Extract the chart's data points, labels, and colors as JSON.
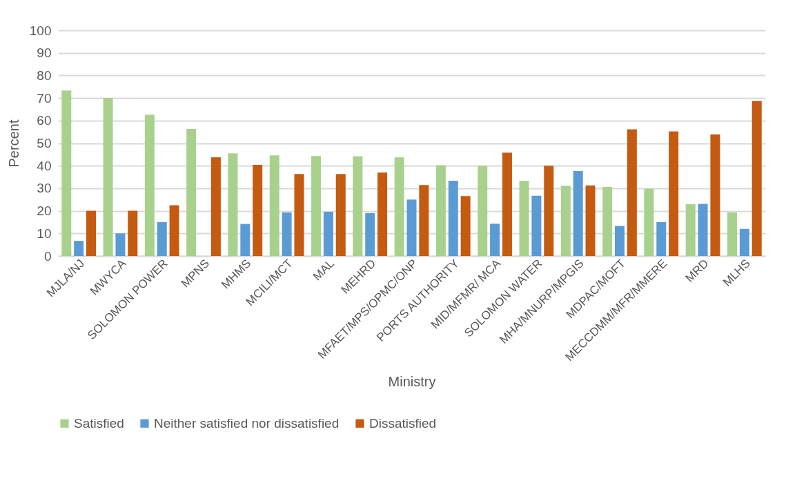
{
  "chart_data": {
    "type": "bar",
    "xlabel": "Ministry",
    "ylabel": "Percent",
    "categories": [
      "MJLA/NJ",
      "MWYCA",
      "SOLOMON POWER",
      "MPNS",
      "MHMS",
      "MCILI/MCT",
      "MAL",
      "MEHRD",
      "MFAET/MPS/OPMC/ONP",
      "PORTS AUTHORITY",
      "MID/MFMR/ MCA",
      "SOLOMON WATER",
      "MHA/MNURP/MPGIS",
      "MDPAC/MOFT",
      "MECCDMM/MFR/MMERE",
      "MRD",
      "MLHS"
    ],
    "series": [
      {
        "name": "Satisfied",
        "color": "#a9d18e",
        "values": [
          73.3,
          70,
          62.6,
          56.3,
          45.5,
          44.6,
          44.3,
          44.2,
          43.7,
          40.2,
          39.9,
          33.3,
          31.1,
          30.6,
          29.8,
          22.9,
          19.3
        ]
      },
      {
        "name": "Neither satisfied nor dissatisfied",
        "color": "#5b9bd5",
        "values": [
          6.7,
          10,
          15,
          0,
          14.2,
          19.3,
          19.6,
          19,
          25,
          33.3,
          14.3,
          26.7,
          37.6,
          13.3,
          15,
          23.1,
          12
        ]
      },
      {
        "name": "Dissatisfied",
        "color": "#c55a11",
        "values": [
          20,
          20,
          22.5,
          43.7,
          40.4,
          36.3,
          36.3,
          37,
          31.4,
          26.5,
          45.8,
          40,
          31.3,
          56.1,
          55.2,
          53.9,
          68.7
        ]
      }
    ],
    "ylim": [
      0,
      100
    ],
    "yticks": [
      0,
      10,
      20,
      30,
      40,
      50,
      60,
      70,
      80,
      90,
      100
    ],
    "grid": "y",
    "legend": "bottom"
  }
}
